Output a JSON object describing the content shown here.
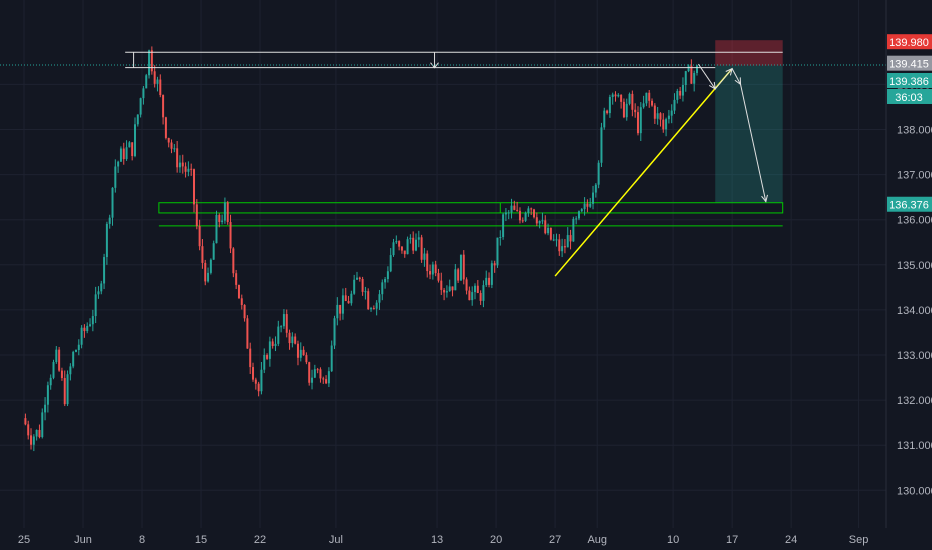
{
  "colors": {
    "background": "#131722",
    "grid": "#1e2230",
    "axis_text": "#b2b5be",
    "candle_up": "#26a69a",
    "candle_down": "#ef5350",
    "trendline": "#ffff00",
    "zone_border": "#00c800",
    "level_line": "#e0e0e0",
    "current_line": "#26a69a",
    "stop_zone": "#f2364555",
    "target_zone": "#26a69a40",
    "badge_stop": "#e53935",
    "badge_current": "#9598a1",
    "badge_green": "#26a69a"
  },
  "chart_data": {
    "type": "candlestick",
    "title": "",
    "xlabel": "",
    "ylabel": "",
    "ylim": [
      129.85,
      140.3
    ],
    "y_ticks": [
      "130.000",
      "131.000",
      "132.000",
      "133.000",
      "134.000",
      "135.000",
      "136.000",
      "137.000",
      "138.000",
      "139.000"
    ],
    "x_ticks": [
      {
        "label": "25",
        "day": 0
      },
      {
        "label": "Jun",
        "day": 7
      },
      {
        "label": "8",
        "day": 14
      },
      {
        "label": "15",
        "day": 21
      },
      {
        "label": "22",
        "day": 28
      },
      {
        "label": "Jul",
        "day": 37
      },
      {
        "label": "13",
        "day": 49
      },
      {
        "label": "20",
        "day": 56
      },
      {
        "label": "27",
        "day": 63
      },
      {
        "label": "Aug",
        "day": 68
      },
      {
        "label": "10",
        "day": 77
      },
      {
        "label": "17",
        "day": 84
      },
      {
        "label": "24",
        "day": 91
      },
      {
        "label": "Sep",
        "day": 99
      }
    ],
    "price_path": [
      [
        0,
        131.6
      ],
      [
        1,
        131.2
      ],
      [
        2,
        131.3
      ],
      [
        3,
        132.5
      ],
      [
        4,
        132.9
      ],
      [
        5,
        132.1
      ],
      [
        6,
        133.0
      ],
      [
        7,
        133.4
      ],
      [
        8,
        133.8
      ],
      [
        9,
        134.3
      ],
      [
        10,
        135.8
      ],
      [
        11,
        137.2
      ],
      [
        12,
        137.5
      ],
      [
        13,
        137.6
      ],
      [
        14,
        138.7
      ],
      [
        15,
        139.7
      ],
      [
        16,
        139.0
      ],
      [
        17,
        138.0
      ],
      [
        18,
        137.4
      ],
      [
        19,
        137.2
      ],
      [
        20,
        136.9
      ],
      [
        21,
        135.3
      ],
      [
        22,
        134.6
      ],
      [
        23,
        135.9
      ],
      [
        24,
        136.2
      ],
      [
        25,
        135.0
      ],
      [
        26,
        134.0
      ],
      [
        27,
        132.9
      ],
      [
        28,
        132.2
      ],
      [
        29,
        133.1
      ],
      [
        30,
        133.4
      ],
      [
        31,
        133.7
      ],
      [
        32,
        133.3
      ],
      [
        33,
        133.0
      ],
      [
        34,
        132.5
      ],
      [
        35,
        132.7
      ],
      [
        36,
        132.3
      ],
      [
        37,
        134.0
      ],
      [
        38,
        134.1
      ],
      [
        39,
        134.3
      ],
      [
        40,
        134.8
      ],
      [
        41,
        134.2
      ],
      [
        42,
        134.2
      ],
      [
        43,
        134.7
      ],
      [
        44,
        135.5
      ],
      [
        45,
        135.2
      ],
      [
        46,
        135.6
      ],
      [
        47,
        135.4
      ],
      [
        48,
        134.9
      ],
      [
        49,
        135.0
      ],
      [
        50,
        134.5
      ],
      [
        51,
        134.6
      ],
      [
        52,
        135.0
      ],
      [
        53,
        134.4
      ],
      [
        54,
        134.3
      ],
      [
        55,
        134.5
      ],
      [
        56,
        135.1
      ],
      [
        57,
        136.0
      ],
      [
        58,
        136.2
      ],
      [
        59,
        136.0
      ],
      [
        60,
        136.4
      ],
      [
        61,
        136.1
      ],
      [
        62,
        135.7
      ],
      [
        63,
        135.5
      ],
      [
        64,
        135.3
      ],
      [
        65,
        135.7
      ],
      [
        66,
        136.0
      ],
      [
        67,
        136.3
      ],
      [
        68,
        137.0
      ],
      [
        69,
        138.3
      ],
      [
        70,
        139.0
      ],
      [
        71,
        138.4
      ],
      [
        72,
        138.6
      ],
      [
        73,
        138.1
      ],
      [
        74,
        138.7
      ],
      [
        75,
        138.4
      ],
      [
        76,
        138.0
      ],
      [
        77,
        138.6
      ],
      [
        78,
        138.9
      ],
      [
        79,
        139.2
      ],
      [
        80,
        139.3
      ]
    ],
    "levels": {
      "resistance_high": 139.98,
      "current": 139.386,
      "crosshair": 139.415,
      "target": 136.376,
      "zone_top": 136.376,
      "zone_bottom": 136.15
    },
    "trendline": {
      "from": [
        63,
        134.75
      ],
      "to": [
        84,
        139.35
      ]
    },
    "position": {
      "entry": 139.415,
      "stop": 139.98,
      "target": 136.376,
      "from_day": 82,
      "to_day": 90
    },
    "projection": [
      [
        80,
        139.45
      ],
      [
        82,
        138.9
      ],
      [
        84,
        139.35
      ],
      [
        85,
        139.0
      ],
      [
        88,
        136.4
      ]
    ],
    "badges": {
      "stop": "139.980",
      "crosshair": "139.415",
      "current": "139.386",
      "countdown": "36:03",
      "target": "136.376"
    }
  }
}
